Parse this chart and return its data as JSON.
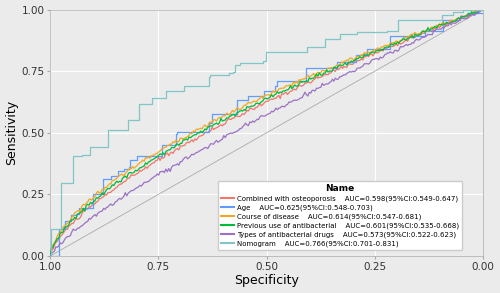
{
  "title": "",
  "xlabel": "Specificity",
  "ylabel": "Sensitivity",
  "bg_color": "#EBEBEB",
  "grid_color": "white",
  "curves": [
    {
      "name": "Combined with osteoporosis",
      "color": "#F4756B",
      "auc": "AUC=0.598(95%CI:0.549-0.647)",
      "auc_val": 0.598,
      "style": "smooth",
      "power": 0.68
    },
    {
      "name": "Age",
      "color": "#619CFF",
      "auc": "AUC=0.625(95%CI:0.548-0.703)",
      "auc_val": 0.625,
      "style": "step",
      "power": 0.58
    },
    {
      "name": "Course of disease",
      "color": "#F5A623",
      "auc": "AUC=0.614(95%CI:0.547-0.681)",
      "auc_val": 0.614,
      "style": "smooth",
      "power": 0.62
    },
    {
      "name": "Previous use of antibacterial",
      "color": "#00BA38",
      "auc": "AUC=0.601(95%CI:0.535-0.668)",
      "auc_val": 0.601,
      "style": "smooth",
      "power": 0.65
    },
    {
      "name": "Types of antibacterial drugs",
      "color": "#9B72C4",
      "auc": "AUC=0.573(95%CI:0.522-0.623)",
      "auc_val": 0.573,
      "style": "smooth",
      "power": 0.8
    },
    {
      "name": "Nomogram",
      "color": "#82C5C5",
      "auc": "AUC=0.766(95%CI:0.701-0.831)",
      "auc_val": 0.766,
      "style": "step",
      "power": 0.33
    }
  ],
  "legend_title": "Name",
  "xlim": [
    1.0,
    0.0
  ],
  "ylim": [
    0.0,
    1.0
  ],
  "xticks": [
    1.0,
    0.75,
    0.5,
    0.25,
    0.0
  ],
  "yticks": [
    0.0,
    0.25,
    0.5,
    0.75,
    1.0
  ]
}
